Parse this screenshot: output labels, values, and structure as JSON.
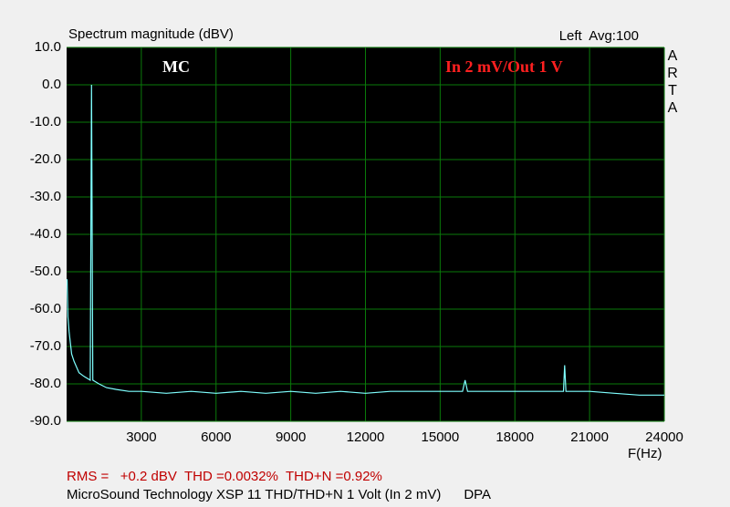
{
  "chart_data": {
    "type": "line",
    "title": "Spectrum magnitude (dBV)",
    "channel_info": "Left  Avg:100",
    "brand": "ARTA",
    "annotations": [
      "MC",
      "In 2 mV/Out 1 V"
    ],
    "xlabel": "F(Hz)",
    "footer_stats": "RMS =   +0.2 dBV  THD =0.0032%  THD+N =0.92%",
    "footer_note": "MicroSound Technology XSP 11 THD/THD+N 1 Volt (In 2 mV)      DPA",
    "x": [
      20,
      50,
      100,
      200,
      300,
      500,
      700,
      950,
      1000,
      1050,
      1300,
      1600,
      2000,
      2500,
      3000,
      4000,
      5000,
      6000,
      7000,
      8000,
      9000,
      10000,
      11000,
      12000,
      13000,
      14000,
      15000,
      15900,
      16000,
      16100,
      17000,
      18000,
      19000,
      19950,
      20000,
      20050,
      21000,
      22000,
      23000,
      24000
    ],
    "values": [
      -52,
      -62,
      -66,
      -72,
      -74,
      -77,
      -78,
      -79,
      0,
      -79,
      -80,
      -81,
      -81.5,
      -82,
      -82,
      -82.5,
      -82,
      -82.5,
      -82,
      -82.5,
      -82,
      -82.5,
      -82,
      -82.5,
      -82,
      -82,
      -82,
      -82,
      -79,
      -82,
      -82,
      -82,
      -82,
      -82,
      -75,
      -82,
      -82,
      -82.5,
      -83,
      -83
    ],
    "color": "#7fffff",
    "xlim": [
      0,
      24000
    ],
    "xticks": [
      3000,
      6000,
      9000,
      12000,
      15000,
      18000,
      21000,
      24000
    ],
    "ylim": [
      -90,
      10
    ],
    "yticks": [
      {
        "value": 10,
        "label": "10.0"
      },
      {
        "value": 0,
        "label": "0.0"
      },
      {
        "value": -10,
        "label": "-10.0"
      },
      {
        "value": -20,
        "label": "-20.0"
      },
      {
        "value": -30,
        "label": "-30.0"
      },
      {
        "value": -40,
        "label": "-40.0"
      },
      {
        "value": -50,
        "label": "-50.0"
      },
      {
        "value": -60,
        "label": "-60.0"
      },
      {
        "value": -70,
        "label": "-70.0"
      },
      {
        "value": -80,
        "label": "-80.0"
      },
      {
        "value": -90,
        "label": "-90.0"
      }
    ],
    "grid": true
  }
}
